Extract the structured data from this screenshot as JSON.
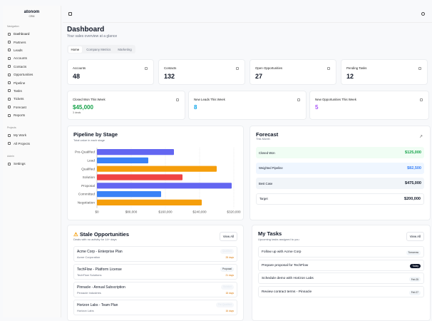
{
  "app": {
    "logo": "atonom",
    "logo_sub": "CRM"
  },
  "sidebar": {
    "sections": [
      {
        "label": "Navigation",
        "items": [
          "Dashboard",
          "Partners",
          "Leads",
          "Accounts",
          "Contacts",
          "Opportunities",
          "Pipeline",
          "Tasks",
          "Tickets",
          "Forecast",
          "Reports"
        ]
      },
      {
        "label": "Projects",
        "items": [
          "My Work",
          "All Projects"
        ]
      },
      {
        "label": "Admin",
        "items": [
          "Settings"
        ]
      }
    ]
  },
  "header": {
    "title": "Dashboard",
    "subtitle": "Your sales overview at a glance",
    "tabs": [
      "Home",
      "Company Metrics",
      "Marketing"
    ],
    "active_tab": "Home"
  },
  "stats": [
    {
      "label": "Accounts",
      "value": "48",
      "icon": "building-icon"
    },
    {
      "label": "Contacts",
      "value": "132",
      "icon": "users-icon"
    },
    {
      "label": "Open Opportunities",
      "value": "27",
      "icon": "target-icon"
    },
    {
      "label": "Pending Tasks",
      "value": "12",
      "icon": "clipboard-icon"
    }
  ],
  "weekly": [
    {
      "label": "Closed Won This Week",
      "value": "$45,000",
      "sub": "3 deals",
      "color": "#16a34a"
    },
    {
      "label": "New Leads This Week",
      "value": "8",
      "color": "#0ea5e9"
    },
    {
      "label": "New Opportunities This Week",
      "value": "5",
      "color": "#a855f7"
    }
  ],
  "pipeline": {
    "title": "Pipeline by Stage",
    "subtitle": "Total value in each stage"
  },
  "chart_data": {
    "type": "bar",
    "orientation": "horizontal",
    "categories": [
      "Pre-Qualified",
      "Lead",
      "Qualified",
      "Solution",
      "Proposal",
      "Committed",
      "Negotiation"
    ],
    "values": [
      180000,
      120000,
      280000,
      200000,
      315000,
      150000,
      245000
    ],
    "colors": [
      "#6366f1",
      "#3b82f6",
      "#f59e0b",
      "#ef4444",
      "#6366f1",
      "#3b82f6",
      "#f59e0b"
    ],
    "xlim": [
      0,
      320000
    ],
    "xticks": [
      "$0",
      "$80,000",
      "$160,000",
      "$240,000",
      "$320,000"
    ],
    "grid": true
  },
  "forecast": {
    "title": "Forecast",
    "subtitle": "This Month",
    "rows": [
      {
        "label": "Closed Won",
        "value": "$125,000",
        "bg": "#f0fdf4",
        "color": "#16a34a"
      },
      {
        "label": "Weighted Pipeline",
        "value": "$82,500",
        "bg": "#eff6ff",
        "color": "#3b82f6"
      },
      {
        "label": "Best Case",
        "value": "$475,000",
        "bg": "#f1f5f9",
        "color": "#111827"
      },
      {
        "label": "Target",
        "value": "$200,000",
        "bg": "#ffffff",
        "color": "#111827"
      }
    ]
  },
  "stale": {
    "title": "Stale Opportunities",
    "subtitle": "Deals with no activity for 14+ days",
    "view_all": "View All",
    "items": [
      {
        "name": "Acme Corp - Enterprise Plan",
        "company": "Acme Corporation",
        "stage": "Qualified",
        "days": "28 days",
        "faint": true
      },
      {
        "name": "TechFlow - Platform License",
        "company": "TechFlow Solutions",
        "stage": "Proposal",
        "days": "21 days",
        "faint": false
      },
      {
        "name": "Pinnacle - Annual Subscription",
        "company": "Pinnacle Industries",
        "stage": "Solution",
        "days": "18 days",
        "faint": true
      },
      {
        "name": "Horizon Labs - Team Plan",
        "company": "Horizon Labs",
        "stage": "Pre-Qualified",
        "days": "16 days",
        "faint": true
      }
    ]
  },
  "tasks": {
    "title": "My Tasks",
    "subtitle": "Upcoming tasks assigned to you",
    "view_all": "View All",
    "items": [
      {
        "name": "Follow up with Acme Corp",
        "due": "Tomorrow",
        "dark": false
      },
      {
        "name": "Prepare proposal for TechFlow",
        "due": "Today",
        "dark": true
      },
      {
        "name": "Schedule demo with Horizon Labs",
        "due": "Feb 25",
        "dark": false
      },
      {
        "name": "Review contract terms - Pinnacle",
        "due": "Feb 27",
        "dark": false
      }
    ]
  }
}
